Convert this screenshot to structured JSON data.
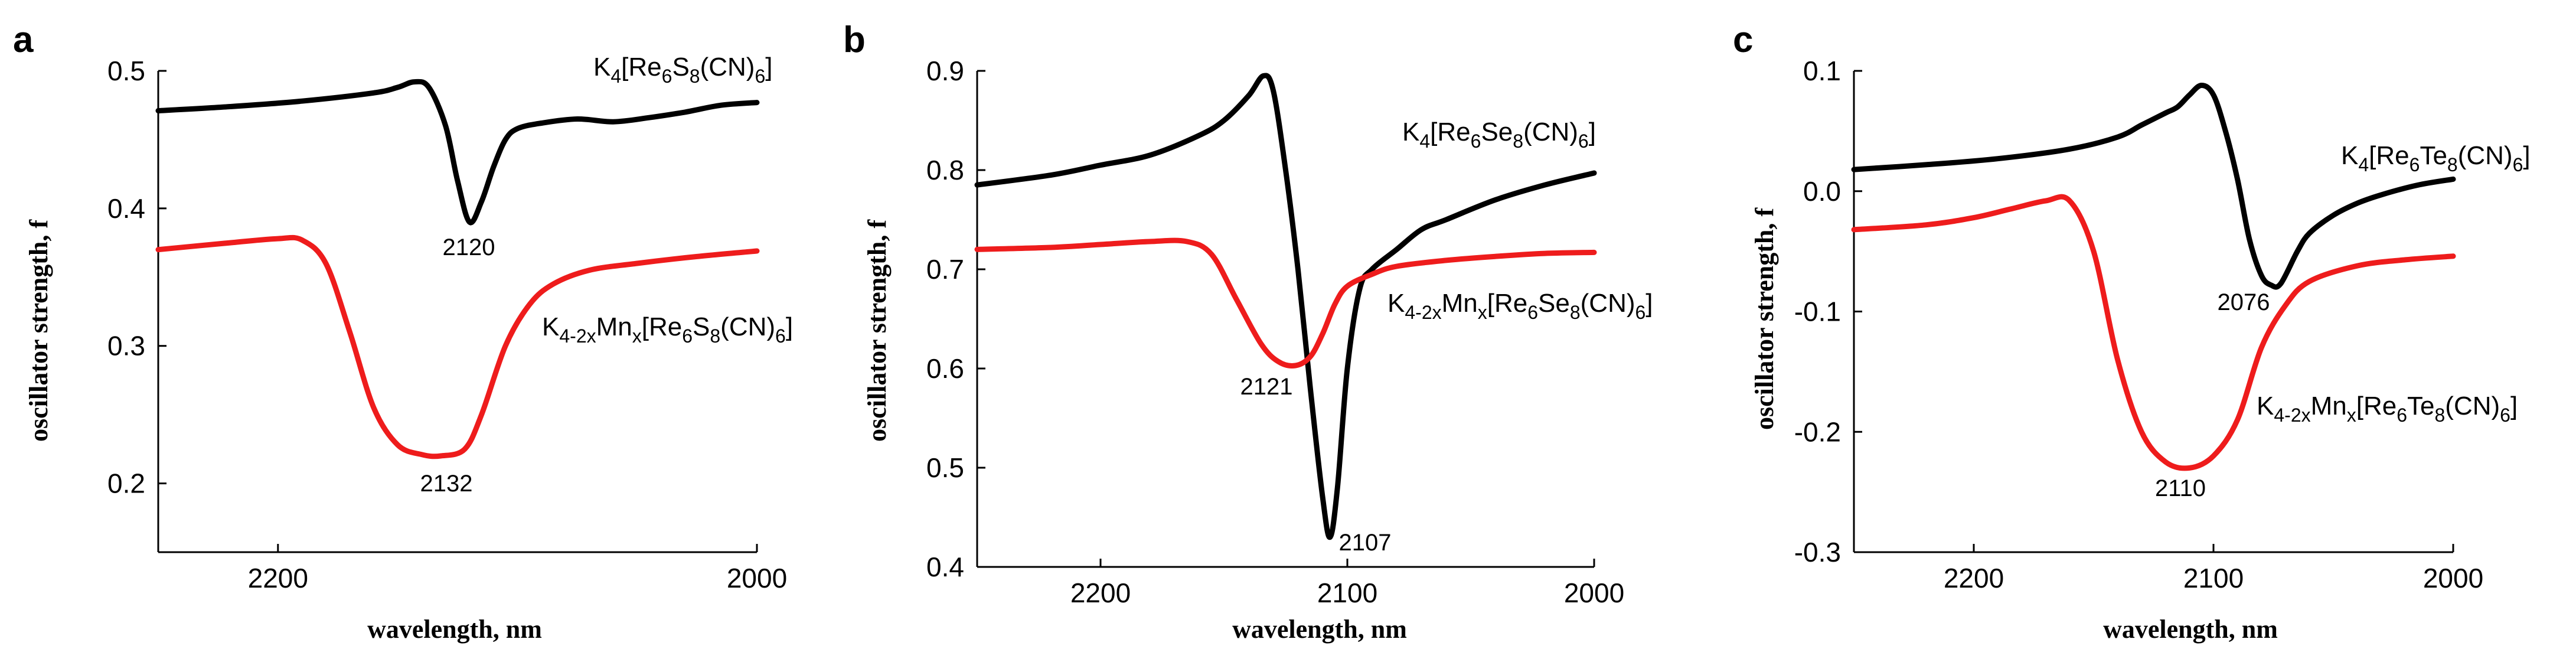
{
  "figure": {
    "panels": [
      {
        "letter": "a",
        "ylabel": "oscillator strength, f",
        "xlabel": "wavelength, nm",
        "xlim": [
          2250,
          2000
        ],
        "ylim": [
          0.15,
          0.5
        ],
        "xticks": [
          2200,
          2000
        ],
        "yticks": [
          0.2,
          0.3,
          0.4,
          0.5
        ],
        "ytick_labels": [
          "0.2",
          "0.3",
          "0.4",
          "0.5"
        ],
        "xtick_labels": [
          "2200",
          "2000"
        ],
        "series_labels": {
          "pure": {
            "pre": "K",
            "sub1": "4",
            "mid": "[Re",
            "sub2": "6",
            "mid2": "S",
            "sub3": "8",
            "post": "(CN)",
            "sub4": "6",
            "end": "]"
          },
          "doped": {
            "pre": "K",
            "sub0": "4-2x",
            "mn": "Mn",
            "subx": "x",
            "mid": "[Re",
            "sub2": "6",
            "mid2": "S",
            "sub3": "8",
            "post": "(CN)",
            "sub4": "6",
            "end": "]"
          }
        },
        "annotations": [
          "2120",
          "2132"
        ]
      },
      {
        "letter": "b",
        "ylabel": "oscillator strength, f",
        "xlabel": "wavelength, nm",
        "xlim": [
          2250,
          2000
        ],
        "ylim": [
          0.4,
          0.9
        ],
        "xticks": [
          2200,
          2100,
          2000
        ],
        "yticks": [
          0.4,
          0.5,
          0.6,
          0.7,
          0.8,
          0.9
        ],
        "ytick_labels": [
          "0.4",
          "0.5",
          "0.6",
          "0.7",
          "0.8",
          "0.9"
        ],
        "xtick_labels": [
          "2200",
          "2100",
          "2000"
        ],
        "series_labels": {
          "pure": {
            "pre": "K",
            "sub1": "4",
            "mid": "[Re",
            "sub2": "6",
            "mid2": "Se",
            "sub3": "8",
            "post": "(CN)",
            "sub4": "6",
            "end": "]"
          },
          "doped": {
            "pre": "K",
            "sub0": "4-2x",
            "mn": "Mn",
            "subx": "x",
            "mid": "[Re",
            "sub2": "6",
            "mid2": "Se",
            "sub3": "8",
            "post": "(CN)",
            "sub4": "6",
            "end": "]"
          }
        },
        "annotations": [
          "2121",
          "2107"
        ]
      },
      {
        "letter": "c",
        "ylabel": "oscillator strength, f",
        "xlabel": "wavelength, nm",
        "xlim": [
          2250,
          2000
        ],
        "ylim": [
          -0.3,
          0.1
        ],
        "xticks": [
          2200,
          2100,
          2000
        ],
        "yticks": [
          -0.3,
          -0.2,
          -0.1,
          0.0,
          0.1
        ],
        "ytick_labels": [
          "-0.3",
          "-0.2",
          "-0.1",
          "0.0",
          "0.1"
        ],
        "xtick_labels": [
          "2200",
          "2100",
          "2000"
        ],
        "series_labels": {
          "pure": {
            "pre": "K",
            "sub1": "4",
            "mid": "[Re",
            "sub2": "6",
            "mid2": "Te",
            "sub3": "8",
            "post": "(CN)",
            "sub4": "6",
            "end": "]"
          },
          "doped": {
            "pre": "K",
            "sub0": "4-2x",
            "mn": "Mn",
            "subx": "x",
            "mid": "[Re",
            "sub2": "6",
            "mid2": "Te",
            "sub3": "8",
            "post": "(CN)",
            "sub4": "6",
            "end": "]"
          }
        },
        "annotations": [
          "2076",
          "2110"
        ]
      }
    ]
  },
  "chart_data": [
    {
      "type": "line",
      "title": "a",
      "xlabel": "wavelength, nm",
      "ylabel": "oscillator strength, f",
      "xlim": [
        2250,
        2000
      ],
      "ylim": [
        0.15,
        0.5
      ],
      "series": [
        {
          "name": "K4[Re6S8(CN)6]",
          "color": "#000000",
          "x": [
            2250,
            2220,
            2190,
            2160,
            2150,
            2143,
            2137,
            2130,
            2125,
            2120,
            2115,
            2110,
            2105,
            2100,
            2090,
            2075,
            2060,
            2045,
            2030,
            2015,
            2000
          ],
          "y": [
            0.471,
            0.474,
            0.478,
            0.484,
            0.488,
            0.492,
            0.488,
            0.46,
            0.42,
            0.39,
            0.405,
            0.43,
            0.45,
            0.458,
            0.462,
            0.465,
            0.463,
            0.466,
            0.47,
            0.475,
            0.477
          ]
        },
        {
          "name": "K4-2xMnx[Re6S8(CN)6]",
          "color": "#ee1c1c",
          "x": [
            2250,
            2220,
            2200,
            2190,
            2180,
            2170,
            2160,
            2150,
            2140,
            2132,
            2122,
            2115,
            2105,
            2095,
            2085,
            2070,
            2050,
            2025,
            2000
          ],
          "y": [
            0.37,
            0.375,
            0.378,
            0.377,
            0.36,
            0.31,
            0.255,
            0.228,
            0.221,
            0.22,
            0.225,
            0.25,
            0.3,
            0.33,
            0.345,
            0.355,
            0.36,
            0.365,
            0.369
          ]
        }
      ],
      "annotations": [
        {
          "text": "2120",
          "x": 2120
        },
        {
          "text": "2132",
          "x": 2132
        }
      ]
    },
    {
      "type": "line",
      "title": "b",
      "xlabel": "wavelength, nm",
      "ylabel": "oscillator strength, f",
      "xlim": [
        2250,
        2000
      ],
      "ylim": [
        0.4,
        0.9
      ],
      "series": [
        {
          "name": "K4[Re6Se8(CN)6]",
          "color": "#000000",
          "x": [
            2250,
            2220,
            2200,
            2180,
            2160,
            2150,
            2140,
            2134,
            2130,
            2125,
            2120,
            2115,
            2110,
            2107,
            2104,
            2100,
            2095,
            2090,
            2080,
            2070,
            2060,
            2040,
            2020,
            2000
          ],
          "y": [
            0.785,
            0.795,
            0.805,
            0.815,
            0.835,
            0.85,
            0.875,
            0.895,
            0.88,
            0.8,
            0.7,
            0.58,
            0.47,
            0.43,
            0.48,
            0.6,
            0.68,
            0.7,
            0.72,
            0.74,
            0.75,
            0.77,
            0.785,
            0.797
          ]
        },
        {
          "name": "K4-2xMnx[Re6Se8(CN)6]",
          "color": "#ee1c1c",
          "x": [
            2250,
            2220,
            2200,
            2180,
            2165,
            2155,
            2145,
            2135,
            2128,
            2121,
            2115,
            2110,
            2105,
            2100,
            2090,
            2080,
            2060,
            2040,
            2020,
            2000
          ],
          "y": [
            0.72,
            0.722,
            0.725,
            0.728,
            0.728,
            0.715,
            0.67,
            0.625,
            0.607,
            0.603,
            0.612,
            0.635,
            0.665,
            0.683,
            0.695,
            0.703,
            0.709,
            0.713,
            0.716,
            0.717
          ]
        }
      ],
      "annotations": [
        {
          "text": "2121",
          "x": 2121
        },
        {
          "text": "2107",
          "x": 2107
        }
      ]
    },
    {
      "type": "line",
      "title": "c",
      "xlabel": "wavelength, nm",
      "ylabel": "oscillator strength, f",
      "xlim": [
        2250,
        2000
      ],
      "ylim": [
        -0.3,
        0.1
      ],
      "series": [
        {
          "name": "K4[Re6Te8(CN)6]",
          "color": "#000000",
          "x": [
            2250,
            2220,
            2190,
            2160,
            2140,
            2130,
            2120,
            2115,
            2110,
            2105,
            2100,
            2095,
            2090,
            2085,
            2080,
            2076,
            2072,
            2065,
            2060,
            2050,
            2040,
            2030,
            2015,
            2000
          ],
          "y": [
            0.018,
            0.022,
            0.027,
            0.035,
            0.045,
            0.055,
            0.065,
            0.07,
            0.08,
            0.088,
            0.08,
            0.05,
            0.01,
            -0.04,
            -0.07,
            -0.078,
            -0.077,
            -0.05,
            -0.035,
            -0.02,
            -0.01,
            -0.003,
            0.005,
            0.01
          ]
        },
        {
          "name": "K4-2xMnx[Re6Te8(CN)6]",
          "color": "#ee1c1c",
          "x": [
            2250,
            2220,
            2200,
            2185,
            2170,
            2160,
            2150,
            2140,
            2130,
            2120,
            2110,
            2100,
            2090,
            2080,
            2070,
            2060,
            2040,
            2020,
            2000
          ],
          "y": [
            -0.032,
            -0.028,
            -0.022,
            -0.015,
            -0.008,
            -0.008,
            -0.05,
            -0.14,
            -0.2,
            -0.225,
            -0.23,
            -0.22,
            -0.19,
            -0.13,
            -0.095,
            -0.075,
            -0.062,
            -0.057,
            -0.054
          ]
        }
      ],
      "annotations": [
        {
          "text": "2076",
          "x": 2076
        },
        {
          "text": "2110",
          "x": 2110
        }
      ]
    }
  ]
}
